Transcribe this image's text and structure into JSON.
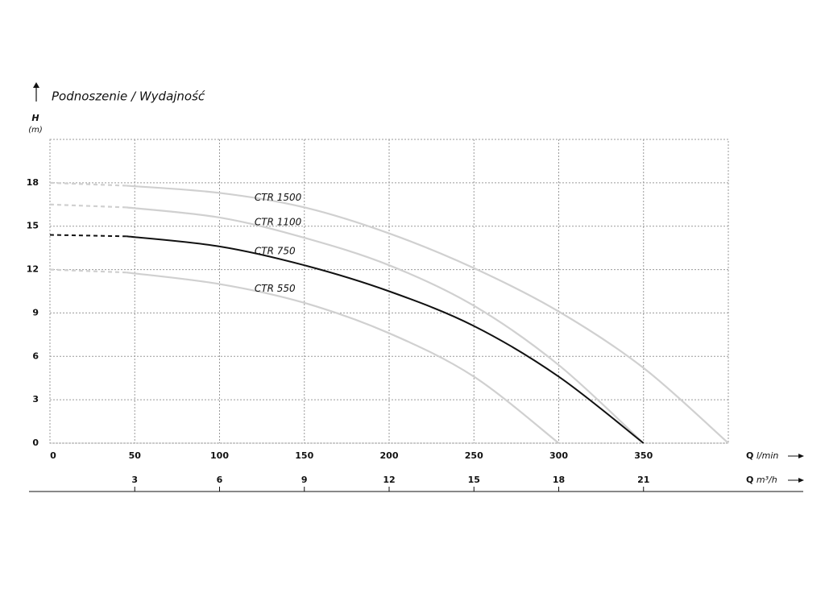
{
  "chart_data": {
    "type": "line",
    "title": "Podnoszenie / Wydajność",
    "y_label": "H",
    "y_unit": "(m)",
    "x_label": {
      "symbol": "Q",
      "unit": "l/min"
    },
    "x2_label": {
      "symbol": "Q",
      "unit": "m³/h"
    },
    "x": [
      0,
      45,
      100,
      150,
      200,
      250,
      300,
      350,
      400
    ],
    "dashed_below_x": 45,
    "series": [
      {
        "name": "CTR 1500",
        "color": "#d0d0d0",
        "values": [
          18,
          17.8,
          17.3,
          16.3,
          14.5,
          12.1,
          9.1,
          5.2,
          0
        ]
      },
      {
        "name": "CTR 1100",
        "color": "#d0d0d0",
        "values": [
          16.5,
          16.3,
          15.6,
          14.2,
          12.3,
          9.5,
          5.4,
          0,
          null
        ]
      },
      {
        "name": "CTR 750",
        "color": "#111111",
        "values": [
          14.4,
          14.3,
          13.6,
          12.3,
          10.5,
          8.1,
          4.6,
          0,
          null
        ]
      },
      {
        "name": "CTR 550",
        "color": "#d0d0d0",
        "values": [
          12,
          11.8,
          11.0,
          9.7,
          7.6,
          4.6,
          0,
          null,
          null
        ]
      }
    ],
    "xlim": [
      0,
      400
    ],
    "xticks": [
      0,
      50,
      100,
      150,
      200,
      250,
      300,
      350
    ],
    "x2lim": [
      0,
      24
    ],
    "x2ticks": [
      3,
      6,
      9,
      12,
      15,
      18,
      21
    ],
    "ylim": [
      0,
      21
    ],
    "yticks": [
      0,
      3,
      6,
      9,
      12,
      15,
      18
    ],
    "grid": true
  }
}
